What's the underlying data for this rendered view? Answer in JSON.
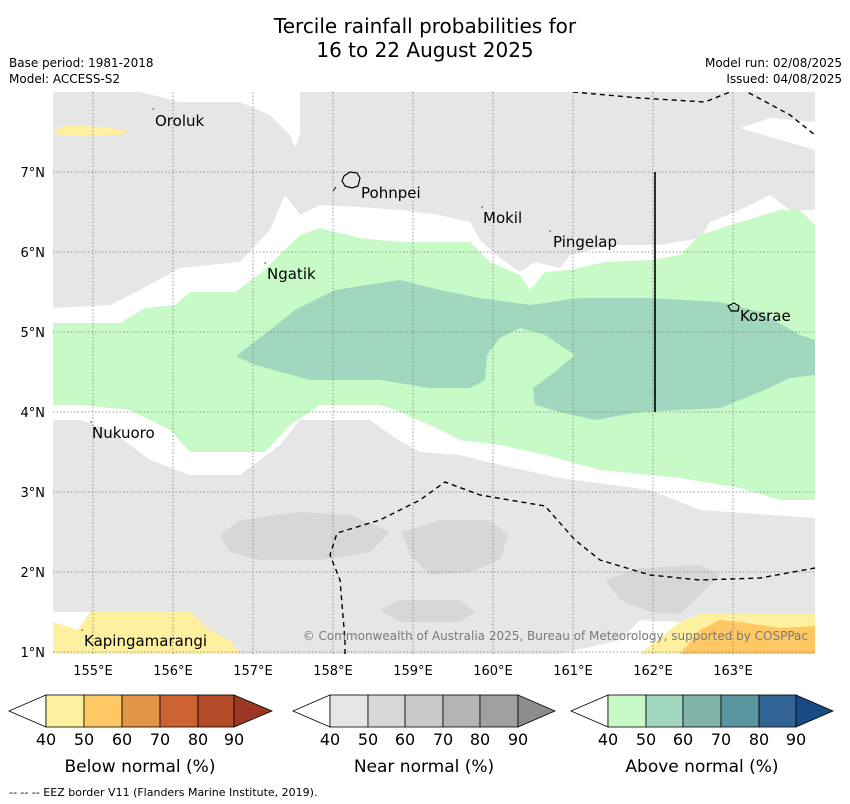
{
  "title_line1": "Tercile rainfall probabilities for",
  "title_line2": "16 to 22 August 2025",
  "meta_left_1": "Base period: 1981-2018",
  "meta_left_2": "Model: ACCESS-S2",
  "meta_right_1": "Model run: 02/08/2025",
  "meta_right_2": "Issued: 04/08/2025",
  "copyright": "© Commonwealth of Australia 2025, Bureau of Meteorology, supported by COSPPac",
  "footnote": "--  --  -- EEZ border V11 (Flanders Marine Institute, 2019).",
  "lon_ticks": [
    "155°E",
    "156°E",
    "157°E",
    "158°E",
    "159°E",
    "160°E",
    "161°E",
    "162°E",
    "163°E"
  ],
  "lat_ticks": [
    "7°N",
    "6°N",
    "5°N",
    "4°N",
    "3°N",
    "2°N",
    "1°N"
  ],
  "places": [
    {
      "name": "Oroluk"
    },
    {
      "name": "Pohnpei"
    },
    {
      "name": "Mokil"
    },
    {
      "name": "Pingelap"
    },
    {
      "name": "Ngatik"
    },
    {
      "name": "Kosrae"
    },
    {
      "name": "Nukuoro"
    },
    {
      "name": "Kapingamarangi"
    }
  ],
  "colorbars": [
    {
      "title": "Below normal (%)",
      "ticks": [
        "40",
        "50",
        "60",
        "70",
        "80",
        "90"
      ],
      "colors": [
        "#fff0a0",
        "#ffc864",
        "#e29647",
        "#cd6332",
        "#b44b28",
        "#9b3723"
      ]
    },
    {
      "title": "Near normal (%)",
      "ticks": [
        "40",
        "50",
        "60",
        "70",
        "80",
        "90"
      ],
      "colors": [
        "#e6e6e6",
        "#d7d7d7",
        "#c8c8c8",
        "#b4b4b4",
        "#a0a0a0",
        "#8c8c8c"
      ]
    },
    {
      "title": "Above normal (%)",
      "ticks": [
        "40",
        "50",
        "60",
        "70",
        "80",
        "90"
      ],
      "colors": [
        "#c8fac8",
        "#a0d7be",
        "#82b4aa",
        "#5a96a0",
        "#326496",
        "#194b82"
      ]
    }
  ]
}
